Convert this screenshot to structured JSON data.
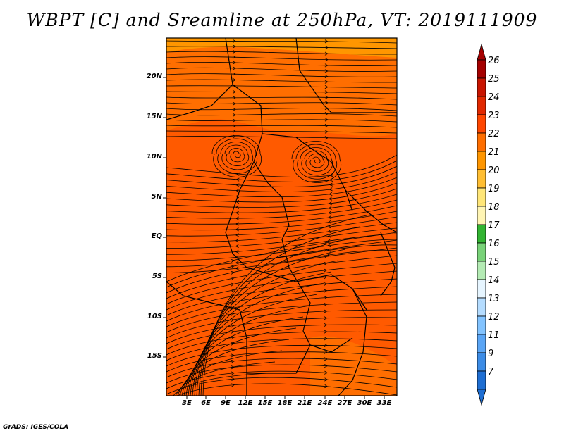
{
  "title": "WBPT [C] and Sreamline at 250hPa, VT: 2019111909",
  "credit": "GrADS: IGES/COLA",
  "map": {
    "lat_labels": [
      "20N",
      "15N",
      "10N",
      "5N",
      "EQ",
      "5S",
      "10S",
      "15S"
    ],
    "lon_labels": [
      "3E",
      "6E",
      "9E",
      "12E",
      "15E",
      "18E",
      "21E",
      "24E",
      "27E",
      "30E",
      "33E"
    ],
    "field_colors": {
      "dominant": "#ff5a00",
      "warm_band": "#ff6e00",
      "cool_band": "#ff9600",
      "edge_band": "#ffa800"
    },
    "streamline_color": "#000000"
  },
  "colorbar": {
    "labels": [
      "26",
      "25",
      "24",
      "23",
      "22",
      "21",
      "20",
      "19",
      "18",
      "17",
      "16",
      "15",
      "14",
      "13",
      "12",
      "11",
      "9",
      "7"
    ],
    "colors": [
      "#a50000",
      "#c81400",
      "#e12800",
      "#ff4600",
      "#ff6e00",
      "#ff9600",
      "#ffbe32",
      "#ffe678",
      "#fff5b4",
      "#32b432",
      "#78d278",
      "#b4ebb4",
      "#e6f5ff",
      "#b4dcff",
      "#82c3ff",
      "#5aa5f5",
      "#3c8ce6",
      "#1e6ed2"
    ],
    "top_arrow_color": "#a50000",
    "bottom_arrow_color": "#1e6ed2"
  }
}
